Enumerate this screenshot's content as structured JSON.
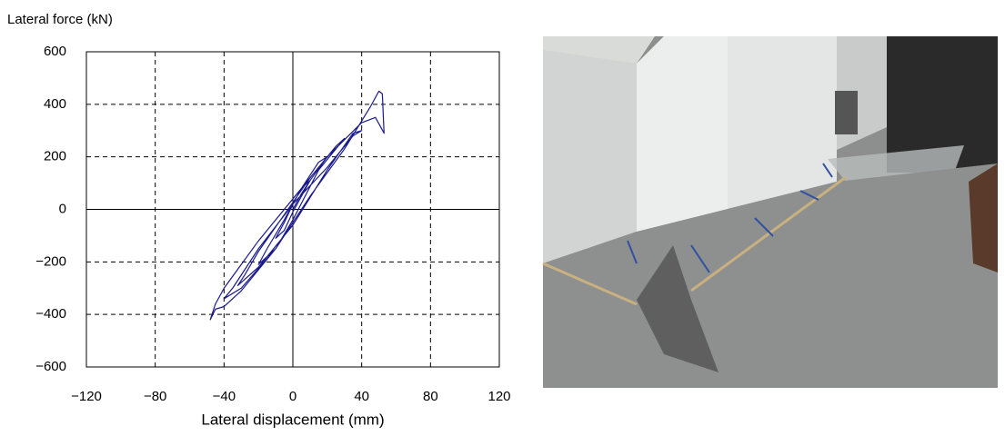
{
  "chart_data": {
    "type": "line",
    "y_axis_label": "Lateral force (kN)",
    "x_axis_label": "Lateral displacement (mm)",
    "xlim": [
      -120,
      120
    ],
    "ylim": [
      -600,
      600
    ],
    "xticks": [
      {
        "value": -120,
        "label": "−120"
      },
      {
        "value": -80,
        "label": "−80"
      },
      {
        "value": -40,
        "label": "−40"
      },
      0,
      40,
      80,
      120
    ],
    "yticks": [
      {
        "value": -600,
        "label": "−600"
      },
      {
        "value": -400,
        "label": "−400"
      },
      {
        "value": -200,
        "label": "−200"
      },
      0,
      200,
      400,
      600
    ],
    "grid": true,
    "series": [
      {
        "color": "#1a1a8c",
        "x": [
          0,
          5,
          10,
          5,
          0,
          -5,
          -10,
          -5,
          0,
          10,
          20,
          15,
          5,
          -5,
          -15,
          -20,
          -10,
          0,
          15,
          25,
          30,
          25,
          10,
          -5,
          -20,
          -28,
          -32,
          -20,
          0,
          20,
          35,
          40,
          35,
          20,
          0,
          -20,
          -35,
          -40,
          -30,
          -10,
          10,
          30,
          45,
          50,
          52,
          53,
          48,
          40,
          20,
          0,
          -20,
          -40,
          -45,
          -48,
          -45,
          -40,
          -30,
          -10
        ],
        "values": [
          0,
          60,
          110,
          80,
          20,
          -50,
          -110,
          -80,
          -10,
          110,
          200,
          180,
          80,
          -40,
          -150,
          -210,
          -150,
          -40,
          150,
          230,
          270,
          240,
          120,
          -20,
          -160,
          -250,
          -290,
          -220,
          -60,
          150,
          290,
          300,
          280,
          160,
          20,
          -150,
          -300,
          -340,
          -300,
          -150,
          50,
          230,
          390,
          450,
          440,
          290,
          350,
          330,
          200,
          40,
          -120,
          -300,
          -360,
          -420,
          -380,
          -370,
          -310,
          -150
        ]
      }
    ]
  }
}
